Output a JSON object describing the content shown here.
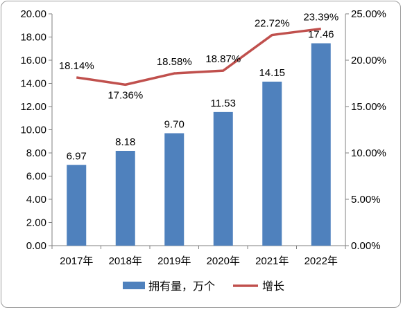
{
  "chart_data": {
    "type": "bar",
    "categories": [
      "2017年",
      "2018年",
      "2019年",
      "2020年",
      "2021年",
      "2022年"
    ],
    "series": [
      {
        "name": "拥有量，万个",
        "type": "bar",
        "axis": "left",
        "color": "#4f81bd",
        "values": [
          6.97,
          8.18,
          9.7,
          11.53,
          14.15,
          17.46
        ],
        "labels": [
          "6.97",
          "8.18",
          "9.70",
          "11.53",
          "14.15",
          "17.46"
        ]
      },
      {
        "name": "增长",
        "type": "line",
        "axis": "right",
        "color": "#c0504d",
        "values": [
          18.14,
          17.36,
          18.58,
          18.87,
          22.72,
          23.39
        ],
        "labels": [
          "18.14%",
          "17.36%",
          "18.58%",
          "18.87%",
          "22.72%",
          "23.39%"
        ]
      }
    ],
    "y_left": {
      "min": 0,
      "max": 20,
      "step": 2,
      "tick_labels": [
        "0.00",
        "2.00",
        "4.00",
        "6.00",
        "8.00",
        "10.00",
        "12.00",
        "14.00",
        "16.00",
        "18.00",
        "20.00"
      ]
    },
    "y_right": {
      "min": 0,
      "max": 25,
      "step": 5,
      "tick_labels": [
        "0.00%",
        "5.00%",
        "10.00%",
        "15.00%",
        "20.00%",
        "25.00%"
      ]
    },
    "legend_position": "bottom",
    "grid": false
  }
}
